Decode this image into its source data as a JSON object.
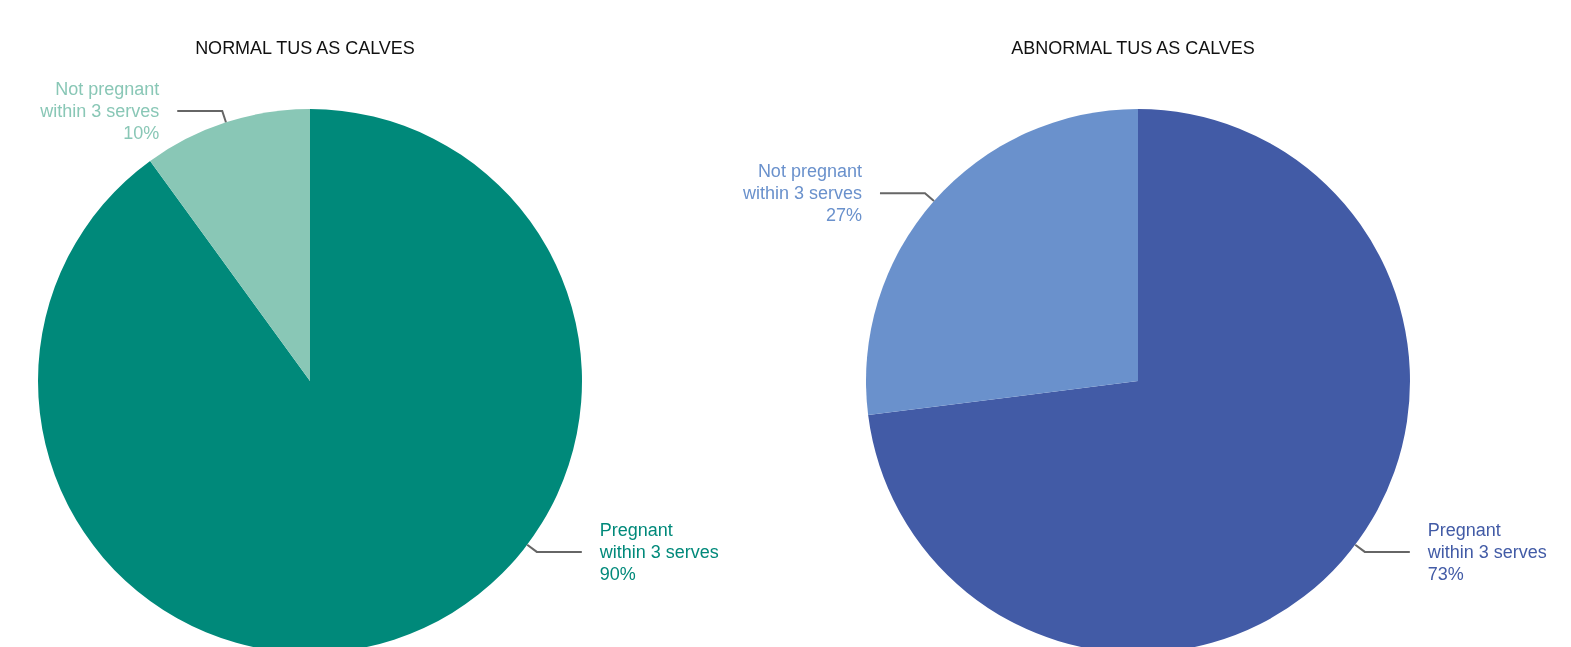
{
  "chart_data": [
    {
      "type": "pie",
      "title": "NORMAL TUS AS CALVES",
      "categories": [
        "Pregnant within 3 serves",
        "Not pregnant within 3 serves"
      ],
      "values": [
        90,
        10
      ],
      "colors": [
        "#00897a",
        "#89c7b6"
      ],
      "value_labels": [
        "90%",
        "10%"
      ]
    },
    {
      "type": "pie",
      "title": "ABNORMAL TUS AS CALVES",
      "categories": [
        "Pregnant within 3 serves",
        "Not pregnant within 3 serves"
      ],
      "values": [
        73,
        27
      ],
      "colors": [
        "#425ba6",
        "#6a91cc"
      ],
      "value_labels": [
        "73%",
        "27%"
      ]
    }
  ]
}
